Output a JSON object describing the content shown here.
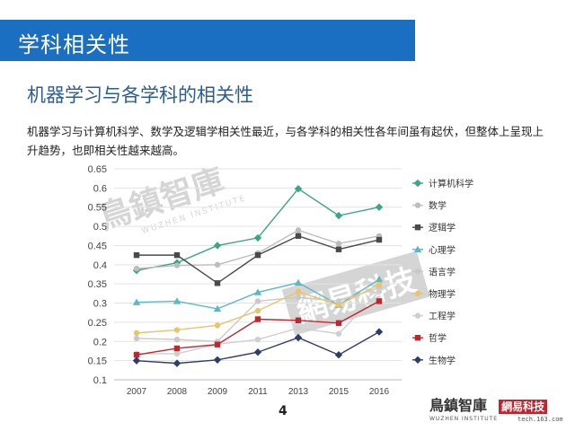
{
  "header": {
    "title": "学科相关性"
  },
  "subtitle": "机器学习与各学科的相关性",
  "description": "机器学习与计算机科学、数学及逻辑学相关性最近，与各学科的相关性各年间虽有起伏，但整体上呈现上升趋势，也即相关性越来越高。",
  "page_number": "4",
  "watermark": {
    "brand": "鳥鎮智庫",
    "brand_en": "WUZHEN INSTITUTE",
    "stamp": "網易科技"
  },
  "footer": {
    "brand": "鳥鎮智庫",
    "brand_en": "WUZHEN INSTITUTE",
    "site": "tech.163.com",
    "site_logo": "網易科技"
  },
  "colors": {
    "header_bg": "#1a6fc2",
    "subtitle": "#2a5d93"
  },
  "chart_data": {
    "type": "line",
    "title": "",
    "xlabel": "",
    "ylabel": "",
    "categories": [
      "2007",
      "2008",
      "2009",
      "2011",
      "2013",
      "2015",
      "2016"
    ],
    "ylim": [
      0.1,
      0.65
    ],
    "yticks": [
      "0.1",
      "0.15",
      "0.2",
      "0.25",
      "0.3",
      "0.35",
      "0.4",
      "0.45",
      "0.5",
      "0.55",
      "0.6",
      "0.65"
    ],
    "grid": "horizontal",
    "legend_position": "right",
    "series": [
      {
        "name": "计算机科学",
        "color": "#3aa587",
        "marker": "diamond",
        "values": [
          0.385,
          0.405,
          0.45,
          0.47,
          0.598,
          0.528,
          0.55
        ]
      },
      {
        "name": "数学",
        "color": "#bdbdbd",
        "marker": "circle",
        "values": [
          0.39,
          0.398,
          0.4,
          0.43,
          0.49,
          0.455,
          0.475
        ]
      },
      {
        "name": "逻辑学",
        "color": "#4a4a4a",
        "marker": "square",
        "values": [
          0.425,
          0.425,
          0.352,
          0.425,
          0.475,
          0.44,
          0.465
        ]
      },
      {
        "name": "心理学",
        "color": "#5ab8c8",
        "marker": "triangle",
        "values": [
          0.302,
          0.305,
          0.285,
          0.328,
          0.353,
          0.295,
          0.362
        ]
      },
      {
        "name": "语言学",
        "color": "#c9c9c9",
        "marker": "circle",
        "values": [
          0.208,
          0.205,
          0.2,
          0.305,
          0.315,
          0.305,
          0.34
        ]
      },
      {
        "name": "物理学",
        "color": "#e8c46b",
        "marker": "circle",
        "values": [
          0.222,
          0.23,
          0.242,
          0.28,
          0.33,
          0.295,
          0.348
        ]
      },
      {
        "name": "工程学",
        "color": "#cfcfcf",
        "marker": "circle",
        "values": [
          0.168,
          0.168,
          0.193,
          0.205,
          0.235,
          0.22,
          0.33
        ]
      },
      {
        "name": "哲学",
        "color": "#c0262d",
        "marker": "square",
        "values": [
          0.165,
          0.182,
          0.192,
          0.258,
          0.255,
          0.248,
          0.305
        ]
      },
      {
        "name": "生物学",
        "color": "#2f3d6b",
        "marker": "diamond",
        "values": [
          0.15,
          0.143,
          0.152,
          0.172,
          0.21,
          0.165,
          0.225
        ]
      }
    ]
  }
}
